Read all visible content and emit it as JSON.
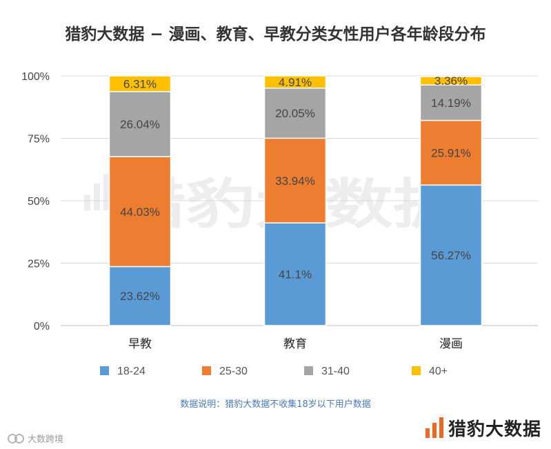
{
  "header": {
    "title": "猎豹大数据 − 漫画、教育、早教分类女性用户各年龄段分布"
  },
  "chart_data": {
    "type": "bar",
    "stacked": true,
    "title": "猎豹大数据 − 漫画、教育、早教分类女性用户各年龄段分布",
    "categories": [
      "早教",
      "教育",
      "漫画"
    ],
    "series": [
      {
        "name": "18-24",
        "color": "#5b9bd5",
        "values": [
          23.62,
          41.1,
          56.27
        ],
        "labels": [
          "23.62%",
          "41.1%",
          "56.27%"
        ]
      },
      {
        "name": "25-30",
        "color": "#ed7d31",
        "values": [
          44.03,
          33.94,
          25.91
        ],
        "labels": [
          "44.03%",
          "33.94%",
          "25.91%"
        ]
      },
      {
        "name": "31-40",
        "color": "#a5a5a5",
        "values": [
          26.04,
          20.05,
          14.19
        ],
        "labels": [
          "26.04%",
          "20.05%",
          "14.19%"
        ]
      },
      {
        "name": "40+",
        "color": "#ffc000",
        "values": [
          6.31,
          4.91,
          3.36
        ],
        "labels": [
          "6.31%",
          "4.91%",
          "3.36%"
        ]
      }
    ],
    "y_ticks": [
      "0%",
      "25%",
      "50%",
      "75%",
      "100%"
    ],
    "ylim": [
      0,
      100
    ],
    "xlabel": "",
    "ylabel": "",
    "legend_position": "bottom",
    "grid": true,
    "watermark": "猎豹大数据"
  },
  "footer": {
    "note": "数据说明：猎豹大数据不收集18岁以下用户数据",
    "brand_name": "猎豹大数据",
    "brand_color": "#f26522",
    "source_text": "大数跨境"
  }
}
